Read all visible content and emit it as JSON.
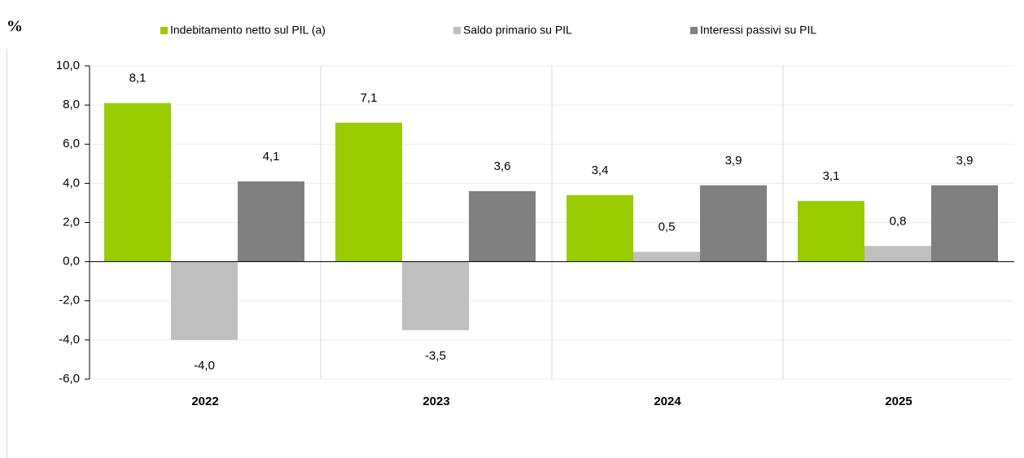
{
  "chart_data": {
    "type": "bar",
    "y_label": "%",
    "categories": [
      "2022",
      "2023",
      "2024",
      "2025"
    ],
    "series": [
      {
        "name": "Indebitamento netto sul PIL (a)",
        "color": "#99cc00",
        "values": [
          8.1,
          7.1,
          3.4,
          3.1
        ],
        "value_labels": [
          "8,1",
          "7,1",
          "3,4",
          "3,1"
        ]
      },
      {
        "name": "Saldo primario su PIL",
        "color": "#bfbfbf",
        "values": [
          -4.0,
          -3.5,
          0.5,
          0.8
        ],
        "value_labels": [
          "-4,0",
          "-3,5",
          "0,5",
          "0,8"
        ]
      },
      {
        "name": "Interessi passivi su PIL",
        "color": "#808080",
        "values": [
          4.1,
          3.6,
          3.9,
          3.9
        ],
        "value_labels": [
          "4,1",
          "3,6",
          "3,9",
          "3,9"
        ]
      }
    ],
    "ylim": [
      -6,
      10
    ],
    "yticks": [
      {
        "value": -6,
        "label": "-6,0"
      },
      {
        "value": -4,
        "label": "-4,0"
      },
      {
        "value": -2,
        "label": "-2,0"
      },
      {
        "value": 0,
        "label": "0,0"
      },
      {
        "value": 2,
        "label": "2,0"
      },
      {
        "value": 4,
        "label": "4,0"
      },
      {
        "value": 6,
        "label": "6,0"
      },
      {
        "value": 8,
        "label": "8,0"
      },
      {
        "value": 10,
        "label": "10,0"
      }
    ],
    "grid": true,
    "legend": "top"
  }
}
